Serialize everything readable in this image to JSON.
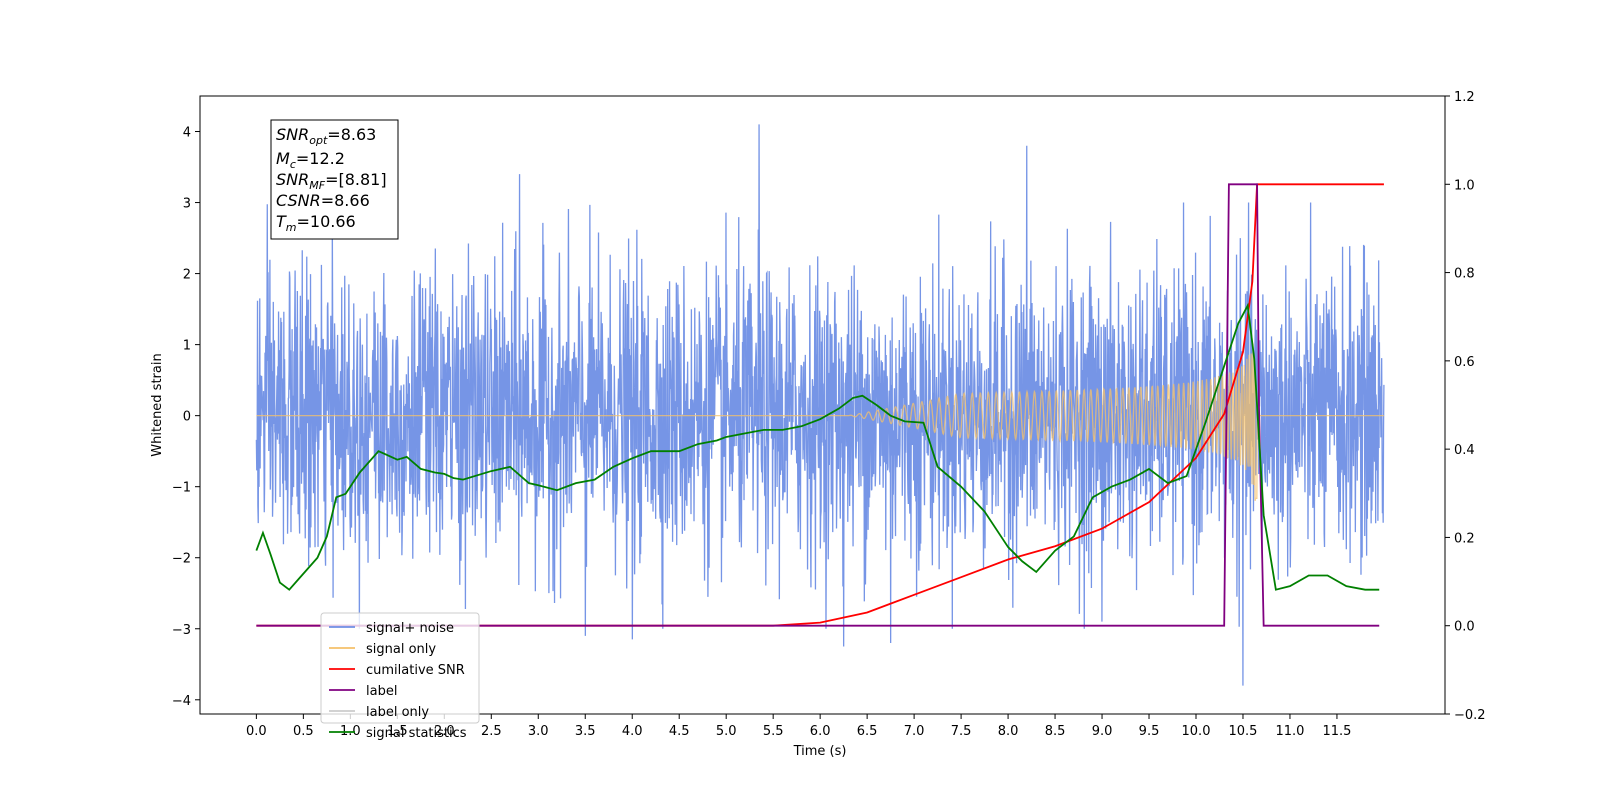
{
  "chart_data": {
    "type": "line",
    "xlabel": "Time (s)",
    "ylabel_left": "Whitened strain",
    "xlim": [
      -0.6,
      12.65
    ],
    "ylim_left": [
      -4.2,
      4.5
    ],
    "ylim_right": [
      -0.2,
      1.2
    ],
    "x_ticks": [
      "0.0",
      "0.5",
      "1.0",
      "1.5",
      "2.0",
      "2.5",
      "3.0",
      "3.5",
      "4.0",
      "4.5",
      "5.0",
      "5.5",
      "6.0",
      "6.5",
      "7.0",
      "7.5",
      "8.0",
      "8.5",
      "9.0",
      "9.5",
      "10.0",
      "10.5",
      "11.0",
      "11.5"
    ],
    "y_ticks_left": [
      "−4",
      "−3",
      "−2",
      "−1",
      "0",
      "1",
      "2",
      "3",
      "4"
    ],
    "y_ticks_right": [
      "−0.2",
      "0.0",
      "0.2",
      "0.4",
      "0.6",
      "0.8",
      "1.0",
      "1.2"
    ],
    "annotation": [
      {
        "base": "SNR",
        "sub": "opt",
        "value": "=8.63"
      },
      {
        "base": "M",
        "sub": "c",
        "value": "=12.2"
      },
      {
        "base": "SNR",
        "sub": "MF",
        "value": "=[8.81]"
      },
      {
        "base": "CSNR",
        "sub": "",
        "value": "=8.66"
      },
      {
        "base": "T",
        "sub": "m",
        "value": "=10.66"
      }
    ],
    "legend": {
      "placement": "lower-left",
      "entries": [
        {
          "label": "signal+ noise",
          "color": "#6f8fe5"
        },
        {
          "label": "signal only",
          "color": "#f5c16a"
        },
        {
          "label": "cumilative SNR",
          "color": "#ff0000"
        },
        {
          "label": "label",
          "color": "#800080"
        },
        {
          "label": "label only",
          "color": "#cccccc"
        },
        {
          "label": "signal statistics",
          "color": "#008000"
        }
      ]
    },
    "series": [
      {
        "name": "signal+ noise",
        "axis": "left",
        "color": "#6f8fe5",
        "noise_std": 1.0,
        "x_range": [
          0.0,
          12.0
        ],
        "extremes": [
          {
            "x": 5.35,
            "y": 4.1
          },
          {
            "x": 8.2,
            "y": 3.8
          },
          {
            "x": 10.5,
            "y": -3.8
          },
          {
            "x": 2.8,
            "y": 3.4
          },
          {
            "x": 4.0,
            "y": -3.15
          },
          {
            "x": 3.5,
            "y": -3.1
          },
          {
            "x": 9.0,
            "y": -2.9
          },
          {
            "x": 6.25,
            "y": -3.25
          },
          {
            "x": 6.75,
            "y": -3.2
          }
        ]
      },
      {
        "name": "signal only",
        "axis": "left",
        "color": "#f5c16a",
        "chirp": {
          "t_start": 6.3,
          "t_merge": 10.65,
          "amp_at_merge": 1.0,
          "x_end": 12.0
        }
      },
      {
        "name": "cumilative SNR",
        "axis": "right",
        "color": "#ff0000",
        "x": [
          0.0,
          5.5,
          6.0,
          6.5,
          7.0,
          7.5,
          8.0,
          8.5,
          9.0,
          9.5,
          10.0,
          10.3,
          10.5,
          10.6,
          10.65,
          10.7,
          12.0
        ],
        "y": [
          0.0,
          0.0,
          0.007,
          0.03,
          0.07,
          0.11,
          0.15,
          0.18,
          0.22,
          0.28,
          0.38,
          0.48,
          0.62,
          0.78,
          1.0,
          1.0,
          1.0
        ]
      },
      {
        "name": "label",
        "axis": "right",
        "color": "#800080",
        "x": [
          0.0,
          10.3,
          10.35,
          10.6,
          10.65,
          10.67,
          10.72,
          11.95
        ],
        "y": [
          0.0,
          0.0,
          1.0,
          1.0,
          1.0,
          0.5,
          0.0,
          0.0
        ]
      },
      {
        "name": "signal statistics",
        "axis": "left",
        "color": "#008000",
        "x": [
          0.0,
          0.07,
          0.15,
          0.25,
          0.35,
          0.45,
          0.55,
          0.65,
          0.75,
          0.85,
          0.95,
          1.1,
          1.3,
          1.5,
          1.6,
          1.75,
          1.9,
          2.0,
          2.1,
          2.2,
          2.5,
          2.7,
          2.9,
          3.0,
          3.2,
          3.4,
          3.6,
          3.8,
          4.0,
          4.2,
          4.5,
          4.7,
          4.9,
          5.0,
          5.2,
          5.4,
          5.6,
          5.8,
          6.0,
          6.2,
          6.35,
          6.45,
          6.6,
          6.75,
          6.9,
          7.1,
          7.25,
          7.5,
          7.75,
          8.0,
          8.15,
          8.3,
          8.5,
          8.7,
          8.9,
          9.1,
          9.3,
          9.5,
          9.7,
          9.9,
          10.1,
          10.3,
          10.45,
          10.55,
          10.62,
          10.72,
          10.85,
          11.0,
          11.2,
          11.4,
          11.6,
          11.8,
          11.95
        ],
        "y": [
          -1.9,
          -1.65,
          -1.95,
          -2.35,
          -2.45,
          -2.3,
          -2.15,
          -2.0,
          -1.7,
          -1.15,
          -1.1,
          -0.8,
          -0.5,
          -0.62,
          -0.58,
          -0.75,
          -0.8,
          -0.82,
          -0.88,
          -0.9,
          -0.78,
          -0.72,
          -0.95,
          -0.98,
          -1.05,
          -0.95,
          -0.9,
          -0.72,
          -0.6,
          -0.5,
          -0.5,
          -0.4,
          -0.35,
          -0.3,
          -0.25,
          -0.2,
          -0.2,
          -0.15,
          -0.05,
          0.1,
          0.25,
          0.28,
          0.15,
          0.0,
          -0.08,
          -0.1,
          -0.72,
          -1.0,
          -1.35,
          -1.85,
          -2.05,
          -2.2,
          -1.9,
          -1.7,
          -1.15,
          -1.0,
          -0.9,
          -0.75,
          -0.95,
          -0.85,
          -0.1,
          0.7,
          1.3,
          1.55,
          0.8,
          -1.4,
          -2.45,
          -2.4,
          -2.25,
          -2.25,
          -2.4,
          -2.45,
          -2.45
        ]
      }
    ]
  }
}
